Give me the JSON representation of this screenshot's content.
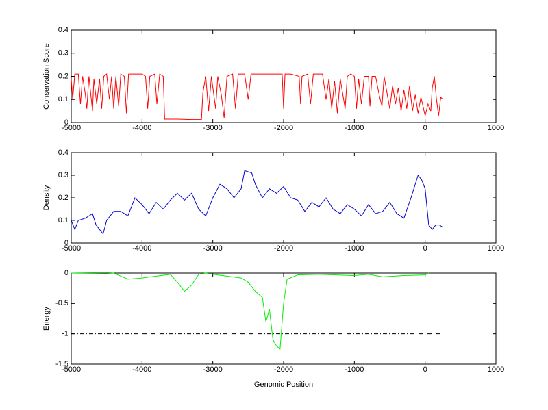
{
  "chart_data": [
    {
      "type": "line",
      "ylabel": "Conservation Score",
      "color": "#ff0000",
      "x": [
        -5000,
        -4980,
        -4950,
        -4900,
        -4870,
        -4840,
        -4800,
        -4780,
        -4750,
        -4700,
        -4680,
        -4640,
        -4600,
        -4570,
        -4540,
        -4500,
        -4460,
        -4430,
        -4400,
        -4370,
        -4330,
        -4300,
        -4250,
        -4220,
        -4190,
        -4100,
        -4000,
        -3950,
        -3920,
        -3890,
        -3820,
        -3790,
        -3750,
        -3700,
        -3680,
        -3500,
        -3300,
        -3160,
        -3140,
        -3100,
        -3060,
        -3020,
        -2960,
        -2930,
        -2880,
        -2840,
        -2800,
        -2720,
        -2680,
        -2640,
        -2550,
        -2500,
        -2460,
        -2300,
        -2100,
        -2020,
        -2000,
        -1980,
        -1900,
        -1780,
        -1760,
        -1740,
        -1660,
        -1620,
        -1580,
        -1450,
        -1400,
        -1360,
        -1320,
        -1280,
        -1240,
        -1200,
        -1130,
        -1100,
        -1050,
        -1000,
        -970,
        -940,
        -900,
        -860,
        -800,
        -780,
        -750,
        -700,
        -650,
        -610,
        -580,
        -540,
        -500,
        -460,
        -420,
        -380,
        -340,
        -300,
        -260,
        -220,
        -180,
        -140,
        -100,
        -60,
        0,
        40,
        80,
        100,
        130,
        160,
        190,
        220,
        250
      ],
      "values": [
        0.19,
        0.1,
        0.21,
        0.21,
        0.08,
        0.2,
        0.12,
        0.06,
        0.2,
        0.05,
        0.19,
        0.08,
        0.19,
        0.06,
        0.2,
        0.21,
        0.1,
        0.2,
        0.06,
        0.2,
        0.07,
        0.21,
        0.2,
        0.04,
        0.21,
        0.21,
        0.21,
        0.2,
        0.06,
        0.2,
        0.21,
        0.08,
        0.21,
        0.2,
        0.015,
        0.015,
        0.013,
        0.013,
        0.13,
        0.2,
        0.05,
        0.2,
        0.06,
        0.2,
        0.12,
        0.02,
        0.2,
        0.21,
        0.06,
        0.21,
        0.21,
        0.1,
        0.21,
        0.21,
        0.21,
        0.21,
        0.06,
        0.21,
        0.21,
        0.2,
        0.08,
        0.2,
        0.21,
        0.08,
        0.21,
        0.21,
        0.1,
        0.19,
        0.06,
        0.18,
        0.04,
        0.19,
        0.06,
        0.2,
        0.21,
        0.2,
        0.06,
        0.19,
        0.08,
        0.2,
        0.2,
        0.07,
        0.2,
        0.2,
        0.12,
        0.07,
        0.2,
        0.13,
        0.06,
        0.16,
        0.08,
        0.15,
        0.05,
        0.14,
        0.06,
        0.16,
        0.05,
        0.12,
        0.04,
        0.11,
        0.03,
        0.08,
        0.05,
        0.15,
        0.2,
        0.1,
        0.03,
        0.11,
        0.1
      ],
      "xlim": [
        -5000,
        1000
      ],
      "xticks": [
        -5000,
        -4000,
        -3000,
        -2000,
        -1000,
        0,
        1000
      ],
      "ylim": [
        0,
        0.4
      ],
      "yticks": [
        0,
        0.1,
        0.2,
        0.3,
        0.4
      ]
    },
    {
      "type": "line",
      "ylabel": "Density",
      "color": "#0000cc",
      "x": [
        -5000,
        -4950,
        -4900,
        -4800,
        -4700,
        -4650,
        -4600,
        -4550,
        -4500,
        -4400,
        -4300,
        -4200,
        -4100,
        -4000,
        -3900,
        -3800,
        -3700,
        -3600,
        -3500,
        -3400,
        -3300,
        -3200,
        -3100,
        -3000,
        -2900,
        -2800,
        -2700,
        -2600,
        -2550,
        -2450,
        -2400,
        -2300,
        -2200,
        -2100,
        -2000,
        -1900,
        -1800,
        -1700,
        -1600,
        -1500,
        -1400,
        -1300,
        -1200,
        -1100,
        -1000,
        -900,
        -800,
        -700,
        -600,
        -500,
        -400,
        -300,
        -200,
        -100,
        -50,
        0,
        50,
        100,
        150,
        200,
        250
      ],
      "values": [
        0.1,
        0.06,
        0.1,
        0.11,
        0.13,
        0.08,
        0.06,
        0.04,
        0.1,
        0.14,
        0.14,
        0.12,
        0.2,
        0.17,
        0.13,
        0.18,
        0.15,
        0.19,
        0.22,
        0.19,
        0.22,
        0.15,
        0.12,
        0.2,
        0.26,
        0.24,
        0.2,
        0.24,
        0.32,
        0.31,
        0.26,
        0.2,
        0.24,
        0.22,
        0.25,
        0.2,
        0.19,
        0.14,
        0.18,
        0.16,
        0.2,
        0.15,
        0.13,
        0.17,
        0.15,
        0.12,
        0.17,
        0.13,
        0.14,
        0.18,
        0.13,
        0.11,
        0.2,
        0.3,
        0.28,
        0.24,
        0.08,
        0.06,
        0.08,
        0.08,
        0.07
      ],
      "xlim": [
        -5000,
        1000
      ],
      "xticks": [
        -5000,
        -4000,
        -3000,
        -2000,
        -1000,
        0,
        1000
      ],
      "ylim": [
        0,
        0.4
      ],
      "yticks": [
        0,
        0.1,
        0.2,
        0.3,
        0.4
      ]
    },
    {
      "type": "line",
      "ylabel": "Energy",
      "xlabel": "Genomic Position",
      "color": "#00ee00",
      "x": [
        -5000,
        -4500,
        -4400,
        -4300,
        -4200,
        -4000,
        -3800,
        -3600,
        -3500,
        -3400,
        -3300,
        -3200,
        -3100,
        -3000,
        -2800,
        -2600,
        -2500,
        -2400,
        -2300,
        -2250,
        -2200,
        -2150,
        -2100,
        -2050,
        -2000,
        -1950,
        -1800,
        -1500,
        -1000,
        -800,
        -600,
        -300,
        0,
        50
      ],
      "values": [
        0,
        -0.01,
        0,
        -0.05,
        -0.1,
        -0.08,
        -0.05,
        -0.02,
        -0.15,
        -0.3,
        -0.2,
        -0.02,
        0,
        -0.02,
        -0.05,
        -0.08,
        -0.15,
        -0.3,
        -0.4,
        -0.8,
        -0.6,
        -1.1,
        -1.2,
        -1.25,
        -0.5,
        -0.1,
        -0.03,
        -0.02,
        -0.04,
        -0.02,
        -0.06,
        -0.04,
        -0.03,
        0
      ],
      "reference_line": {
        "y": -1,
        "x": [
          -5000,
          250
        ],
        "color": "#000000"
      },
      "xlim": [
        -5000,
        1000
      ],
      "xticks": [
        -5000,
        -4000,
        -3000,
        -2000,
        -1000,
        0,
        1000
      ],
      "ylim": [
        -1.5,
        0
      ],
      "yticks": [
        -1.5,
        -1,
        -0.5,
        0
      ]
    }
  ]
}
